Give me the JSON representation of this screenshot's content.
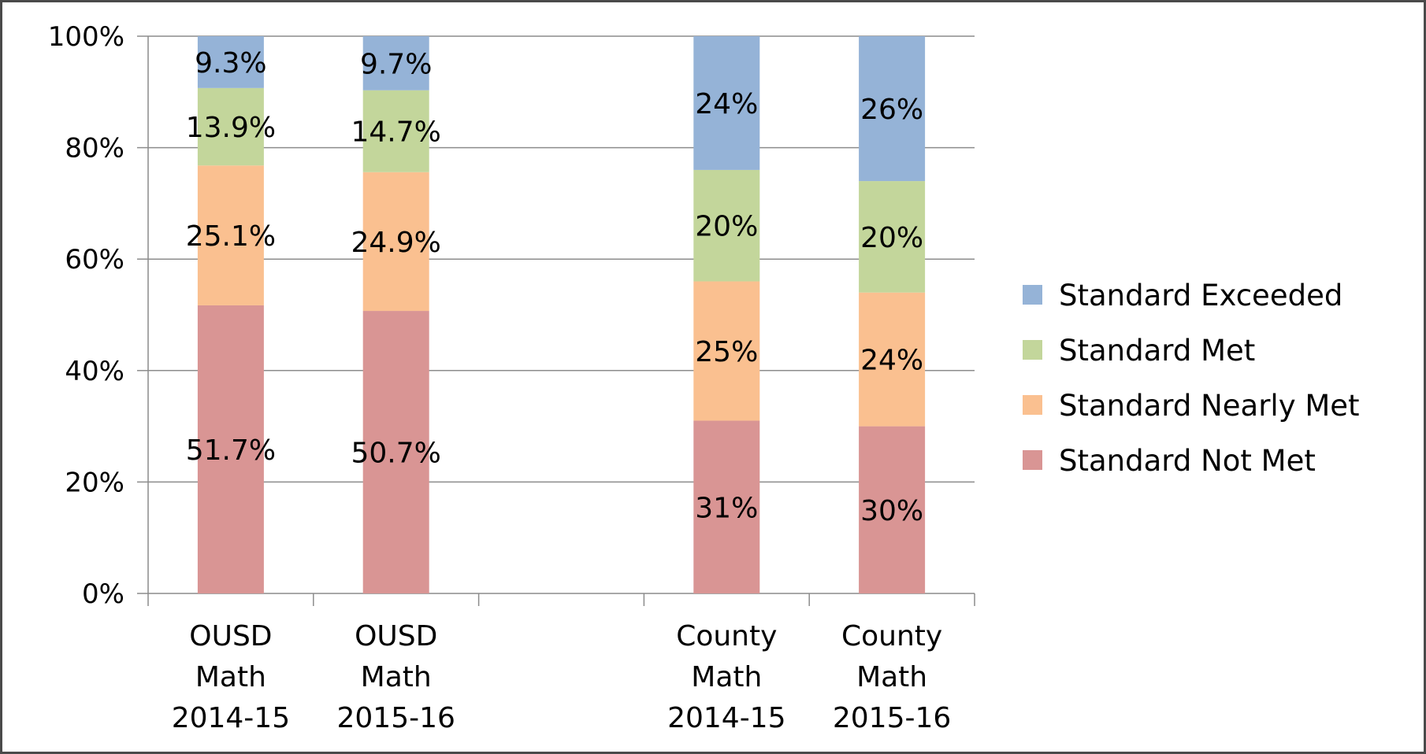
{
  "chart_data": {
    "type": "bar",
    "stacked": true,
    "title": "",
    "xlabel": "",
    "ylabel": "",
    "ylim": [
      0,
      100
    ],
    "y_ticks": [
      "0%",
      "20%",
      "40%",
      "60%",
      "80%",
      "100%"
    ],
    "grid": true,
    "legend_position": "right",
    "categories": [
      [
        "OUSD",
        "Math",
        "2014-15"
      ],
      [
        "OUSD",
        "Math",
        "2015-16"
      ],
      [],
      [
        "County",
        "Math",
        "2014-15"
      ],
      [
        "County",
        "Math",
        "2015-16"
      ]
    ],
    "series": [
      {
        "name": "Standard Not Met",
        "color": "#d99594",
        "values": [
          51.7,
          50.7,
          null,
          31,
          30
        ],
        "labels": [
          "51.7%",
          "50.7%",
          "",
          "31%",
          "30%"
        ]
      },
      {
        "name": "Standard Nearly Met",
        "color": "#fac090",
        "values": [
          25.1,
          24.9,
          null,
          25,
          24
        ],
        "labels": [
          "25.1%",
          "24.9%",
          "",
          "25%",
          "24%"
        ]
      },
      {
        "name": "Standard Met",
        "color": "#c3d69b",
        "values": [
          13.9,
          14.7,
          null,
          20,
          20
        ],
        "labels": [
          "13.9%",
          "14.7%",
          "",
          "20%",
          "20%"
        ]
      },
      {
        "name": "Standard Exceeded",
        "color": "#95b3d7",
        "values": [
          9.3,
          9.7,
          null,
          24,
          26
        ],
        "labels": [
          "9.3%",
          "9.7%",
          "",
          "24%",
          "26%"
        ]
      }
    ],
    "legend_order": [
      "Standard Exceeded",
      "Standard Met",
      "Standard Nearly Met",
      "Standard Not Met"
    ]
  }
}
